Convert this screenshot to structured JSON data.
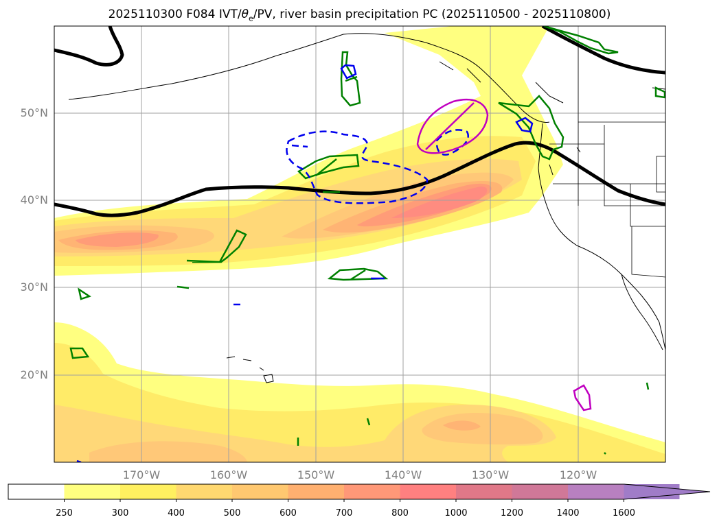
{
  "title": {
    "prefix": "2025110300 F084 IVT/",
    "theta": "θ",
    "theta_sub": "e",
    "suffix": "/PV, river basin precipitation PC (2025110500 - 2025110800)"
  },
  "map": {
    "lat_labels": [
      "50°N",
      "40°N",
      "30°N",
      "20°N"
    ],
    "lon_labels": [
      "170°W",
      "160°W",
      "150°W",
      "140°W",
      "130°W",
      "120°W"
    ],
    "extent": {
      "lon_min": -180,
      "lon_max": -110,
      "lat_min": 10,
      "lat_max": 60
    },
    "colors": {
      "pv_contour": "#000000",
      "theta_contour_positive": "#008000",
      "theta_contour_negative": "#0000ee",
      "precip_contour": "#c000c0"
    }
  },
  "colorbar": {
    "ticks": [
      "250",
      "300",
      "400",
      "500",
      "600",
      "700",
      "800",
      "1000",
      "1200",
      "1400",
      "1600"
    ],
    "colors": [
      "#ffffff",
      "#ffff80",
      "#fff060",
      "#ffd870",
      "#ffc870",
      "#ffb070",
      "#ff9878",
      "#ff8080",
      "#e07888",
      "#d07898",
      "#b880c0",
      "#a07cc8"
    ],
    "extend": "max"
  }
}
